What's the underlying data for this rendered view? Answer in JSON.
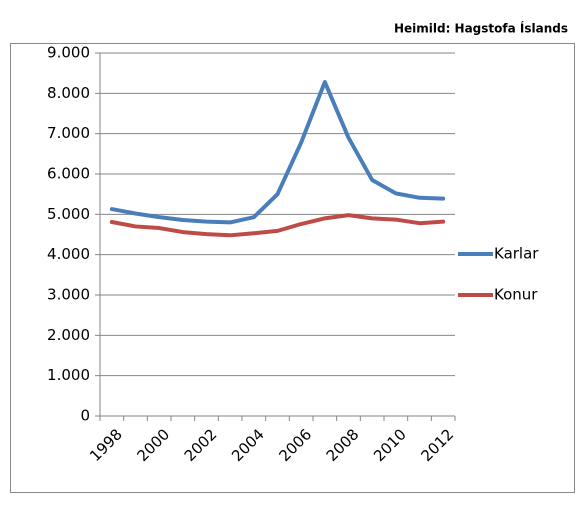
{
  "chart_data": {
    "type": "line",
    "source": "Heimild: Hagstofa Íslands",
    "categories": [
      "1998",
      null,
      "2000",
      null,
      "2002",
      null,
      "2004",
      null,
      "2006",
      null,
      "2008",
      null,
      "2010",
      null,
      "2012"
    ],
    "series": [
      {
        "name": "Karlar",
        "color": "#4a7ebb",
        "values": [
          5130,
          5020,
          4930,
          4860,
          4820,
          4800,
          4930,
          5500,
          6780,
          8280,
          6900,
          5850,
          5520,
          5410,
          5390
        ]
      },
      {
        "name": "Konur",
        "color": "#be4b48",
        "values": [
          4810,
          4700,
          4660,
          4560,
          4510,
          4480,
          4530,
          4590,
          4760,
          4900,
          4980,
          4900,
          4870,
          4780,
          4820
        ]
      }
    ],
    "ylim": [
      0,
      9000
    ],
    "yticks": [
      0,
      {
        "value": 1000,
        "label": "1.000"
      },
      {
        "value": 2000,
        "label": "2.000"
      },
      {
        "value": 3000,
        "label": "3.000"
      },
      {
        "value": 4000,
        "label": "4.000"
      },
      {
        "value": 5000,
        "label": "5.000"
      },
      {
        "value": 6000,
        "label": "6.000"
      },
      {
        "value": 7000,
        "label": "7.000"
      },
      {
        "value": 8000,
        "label": "8.000"
      },
      {
        "value": 9000,
        "label": "9.000"
      }
    ],
    "grid": true,
    "legend": "right"
  }
}
